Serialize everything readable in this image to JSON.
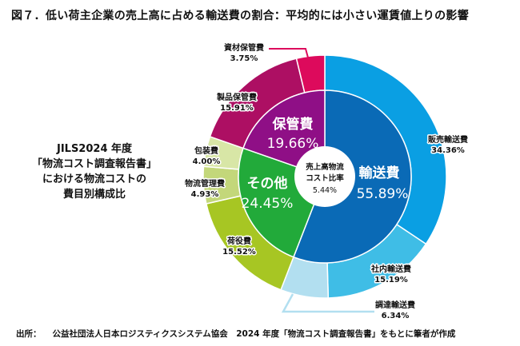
{
  "title": "図７．低い荷主企業の売上高に占める輸送費の割合：平均的には小さい運賃値上りの影響",
  "side_caption": [
    "JILS2024 年度",
    "「物流コスト調査報告書」",
    "における物流コストの",
    "費目別構成比"
  ],
  "source": {
    "label": "出所：",
    "text": "公益社団法人日本ロジスティクスシステム協会　2024 年度「物流コスト調査報告書」をもとに筆者が作成"
  },
  "chart_data": {
    "type": "pie",
    "subtype": "nested-donut",
    "title": "JILS2024 年度「物流コスト調査報告書」における物流コストの費目別構成比",
    "center": {
      "line1": "売上高物流",
      "line2": "コスト比率",
      "value": "5.44%"
    },
    "inner": [
      {
        "name": "輸送費",
        "value": 55.89,
        "pct": "55.89%",
        "color": "#0a6ab6"
      },
      {
        "name": "その他",
        "value": 24.45,
        "pct": "24.45%",
        "color": "#22aa3a"
      },
      {
        "name": "保管費",
        "value": 19.66,
        "pct": "19.66%",
        "color": "#8f0f86"
      }
    ],
    "outer": [
      {
        "name": "販売輸送費",
        "value": 34.36,
        "pct": "34.36%",
        "color": "#0a9fe3",
        "parent": "輸送費"
      },
      {
        "name": "社内輸送費",
        "value": 15.19,
        "pct": "15.19%",
        "color": "#3fbde6",
        "parent": "輸送費"
      },
      {
        "name": "調達輸送費",
        "value": 6.34,
        "pct": "6.34%",
        "color": "#b2dff0",
        "parent": "輸送費"
      },
      {
        "name": "荷役費",
        "value": 15.52,
        "pct": "15.52%",
        "color": "#a7c623",
        "parent": "その他"
      },
      {
        "name": "物流管理費",
        "value": 4.93,
        "pct": "4.93%",
        "color": "#c3d77a",
        "parent": "その他"
      },
      {
        "name": "包装費",
        "value": 4.0,
        "pct": "4.00%",
        "color": "#d8e6a6",
        "parent": "その他"
      },
      {
        "name": "製品保管費",
        "value": 15.91,
        "pct": "15.91%",
        "color": "#ad0f63",
        "parent": "保管費"
      },
      {
        "name": "資材保管費",
        "value": 3.75,
        "pct": "3.75%",
        "color": "#dd0a5c",
        "parent": "保管費"
      }
    ]
  }
}
